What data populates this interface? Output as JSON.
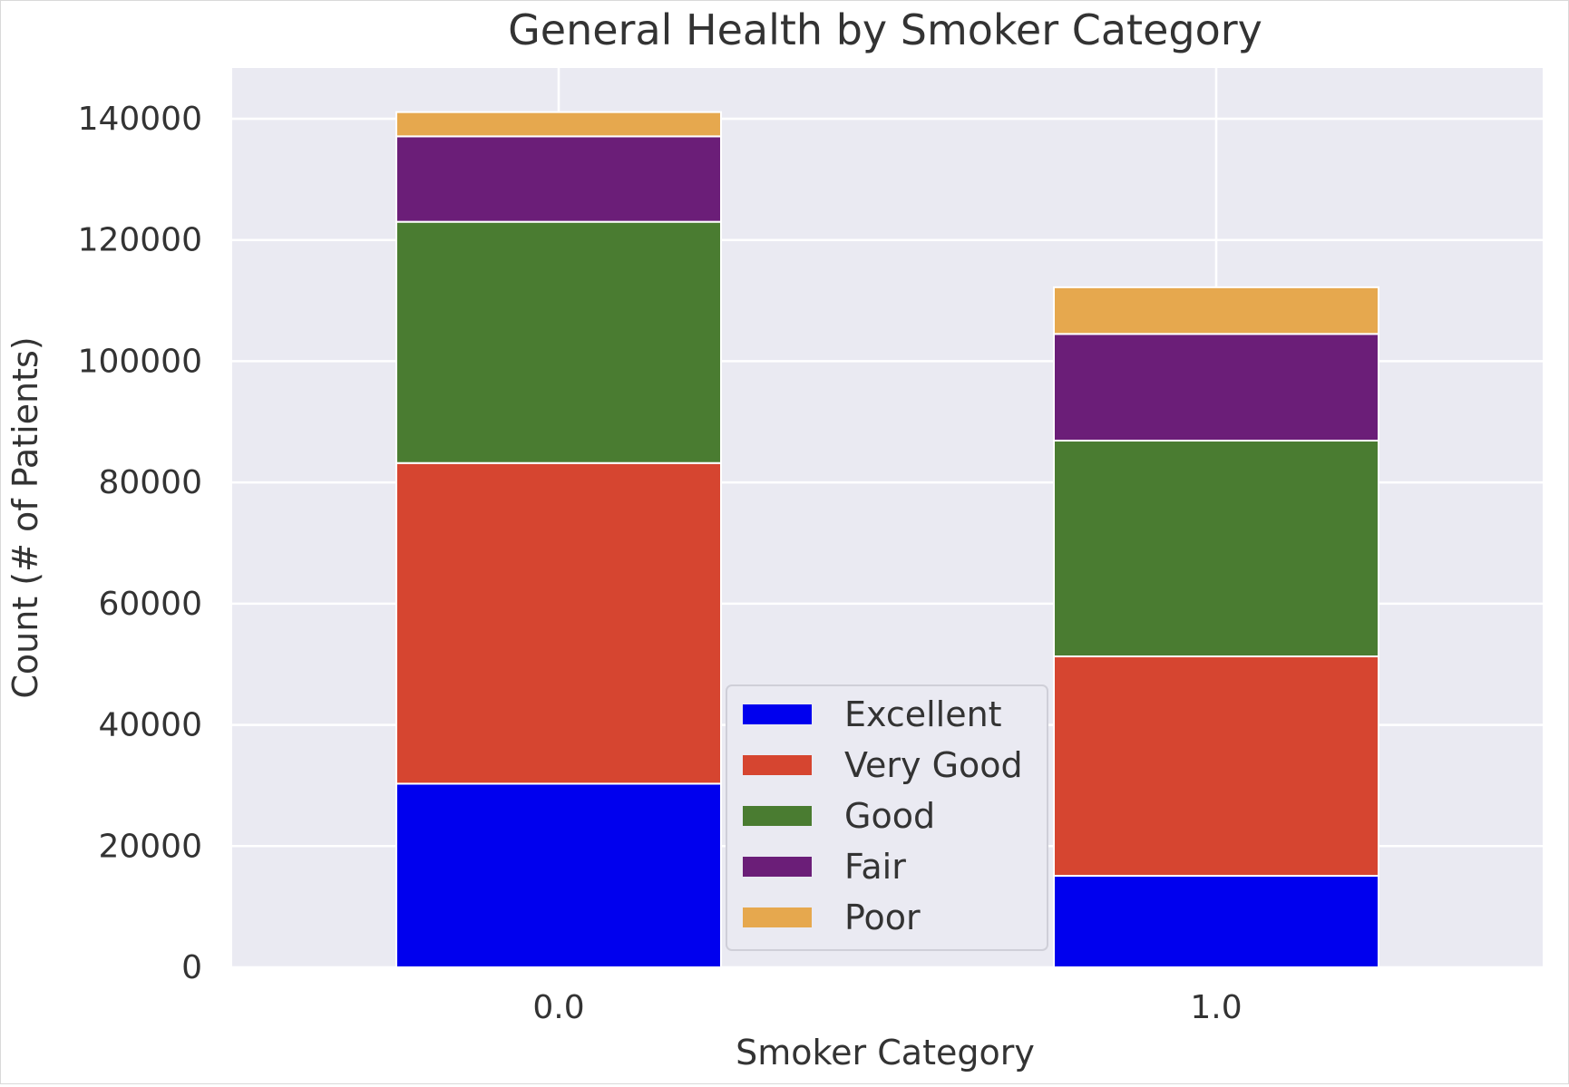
{
  "chart_data": {
    "type": "bar",
    "stacked": true,
    "title": "General Health by Smoker Category",
    "xlabel": "Smoker Category",
    "ylabel": "Count (# of Patients)",
    "categories": [
      "0.0",
      "1.0"
    ],
    "ylim": [
      0,
      150000
    ],
    "yticks": [
      0,
      20000,
      40000,
      60000,
      80000,
      100000,
      120000,
      140000
    ],
    "ytick_labels": [
      "0",
      "20000",
      "40000",
      "60000",
      "80000",
      "100000",
      "120000",
      "140000"
    ],
    "grid": true,
    "legend_position": "center",
    "series": [
      {
        "name": "Excellent",
        "color": "#0000ee",
        "values": [
          30300,
          15100
        ]
      },
      {
        "name": "Very Good",
        "color": "#d64530",
        "values": [
          52900,
          36200
        ]
      },
      {
        "name": "Good",
        "color": "#4a7c31",
        "values": [
          39800,
          35600
        ]
      },
      {
        "name": "Fair",
        "color": "#6b1e78",
        "values": [
          14100,
          17600
        ]
      },
      {
        "name": "Poor",
        "color": "#e6a84e",
        "values": [
          4000,
          7700
        ]
      }
    ]
  }
}
